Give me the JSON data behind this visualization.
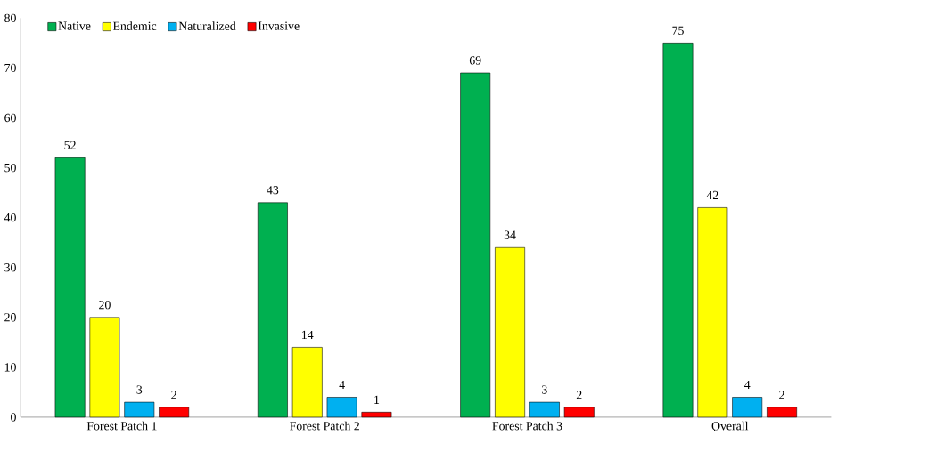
{
  "chart_data": {
    "type": "bar",
    "categories": [
      "Forest Patch 1",
      "Forest Patch 2",
      "Forest Patch 3",
      "Overall"
    ],
    "series": [
      {
        "name": "Native",
        "color": "#00b050",
        "values": [
          52,
          43,
          69,
          75
        ]
      },
      {
        "name": "Endemic",
        "color": "#ffff00",
        "values": [
          20,
          14,
          34,
          42
        ]
      },
      {
        "name": "Naturalized",
        "color": "#00b0f0",
        "values": [
          3,
          4,
          3,
          4
        ]
      },
      {
        "name": "Invasive",
        "color": "#ff0000",
        "values": [
          2,
          1,
          2,
          2
        ]
      }
    ],
    "ylim": [
      0,
      80
    ],
    "yticks": [
      0,
      10,
      20,
      30,
      40,
      50,
      60,
      70,
      80
    ],
    "grid": false,
    "legend": "top left",
    "data_labels": true
  }
}
